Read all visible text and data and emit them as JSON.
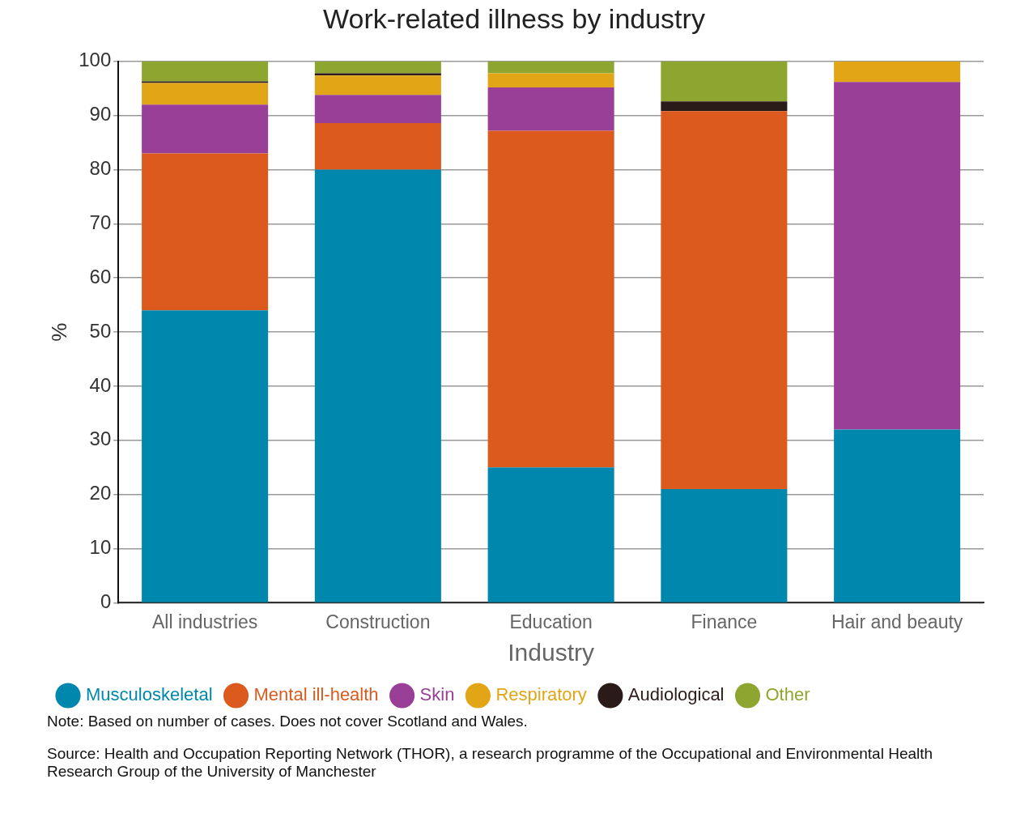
{
  "chart_data": {
    "type": "bar",
    "title": "Work-related illness by industry",
    "xlabel": "Industry",
    "ylabel": "%",
    "categories": [
      "All industries",
      "Construction",
      "Education",
      "Finance",
      "Hair and beauty"
    ],
    "stacked": true,
    "series": [
      {
        "name": "Musculoskeletal",
        "color": "#0087ad",
        "values": [
          54,
          80,
          25,
          21,
          32
        ]
      },
      {
        "name": "Mental ill-health",
        "color": "#dc5a1e",
        "values": [
          29,
          8.6,
          62.2,
          69.8,
          0
        ]
      },
      {
        "name": "Skin",
        "color": "#993f97",
        "values": [
          9,
          5.2,
          8,
          0,
          64.2
        ]
      },
      {
        "name": "Respiratory",
        "color": "#e2a516",
        "values": [
          4,
          3.6,
          2.6,
          0,
          3.8
        ]
      },
      {
        "name": "Audiological",
        "color": "#2a1a18",
        "values": [
          0.3,
          0.4,
          0,
          1.8,
          0
        ]
      },
      {
        "name": "Other",
        "color": "#8ea630",
        "values": [
          3.7,
          2.2,
          2.2,
          7.4,
          0
        ]
      }
    ],
    "ylim": [
      0,
      100
    ],
    "yticks": [
      0,
      10,
      20,
      30,
      40,
      50,
      60,
      70,
      80,
      90,
      100
    ],
    "grid": "y",
    "legend": "bottom",
    "annotations": [
      "Note: Based on number of cases. Does not cover Scotland and Wales.",
      "Source: Health and Occupation Reporting Network (THOR), a research programme of the Occupational and Environmental Health Research Group of the University of Manchester"
    ]
  }
}
